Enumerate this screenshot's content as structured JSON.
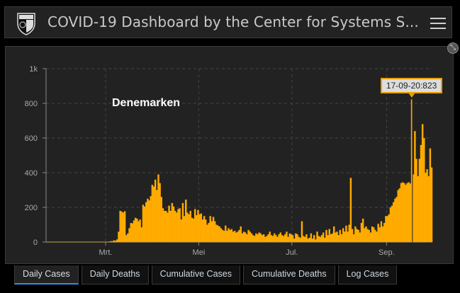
{
  "header": {
    "title": "COVID-19 Dashboard by the Center for Systems S...",
    "menu_icon": "hamburger-menu-icon",
    "logo": "university-shield-logo"
  },
  "chart_panel": {
    "expand_icon": "collapse-expand-icon",
    "country_label": "Denemarken",
    "tooltip": "17-09-20:823"
  },
  "tabs": [
    {
      "label": "Daily Cases",
      "active": true
    },
    {
      "label": "Daily Deaths",
      "active": false
    },
    {
      "label": "Cumulative Cases",
      "active": false
    },
    {
      "label": "Cumulative Deaths",
      "active": false
    },
    {
      "label": "Log Cases",
      "active": false
    }
  ],
  "colors": {
    "bar": "#ffab00",
    "accent": "#2f8fe6",
    "background": "#222222"
  },
  "chart_data": {
    "type": "bar",
    "title": "",
    "xlabel": "",
    "ylabel": "",
    "xlim": [
      "2020-01-22",
      "2020-10-01"
    ],
    "ylim": [
      0,
      1000
    ],
    "yticks": [
      {
        "value": 0,
        "label": "0"
      },
      {
        "value": 200,
        "label": "200"
      },
      {
        "value": 400,
        "label": "400"
      },
      {
        "value": 600,
        "label": "600"
      },
      {
        "value": 800,
        "label": "800"
      },
      {
        "value": 1000,
        "label": "1k"
      }
    ],
    "xticks": [
      {
        "date": "2020-03-01",
        "label": "Mrt."
      },
      {
        "date": "2020-05-01",
        "label": "Mei"
      },
      {
        "date": "2020-07-01",
        "label": "Jul."
      },
      {
        "date": "2020-09-01",
        "label": "Sep."
      }
    ],
    "grid": true,
    "highlight": {
      "date": "2020-09-17",
      "value": 823
    },
    "daily_values_by_month": {
      "2020-02": [
        0,
        0,
        0,
        0,
        0,
        0,
        0,
        0,
        0,
        0,
        0,
        0,
        0,
        0,
        0,
        0,
        0,
        0,
        0,
        0,
        0,
        0,
        0,
        0,
        0,
        0,
        0,
        1,
        0
      ],
      "2020-03": [
        2,
        0,
        3,
        5,
        5,
        10,
        8,
        15,
        60,
        180,
        175,
        170,
        178,
        40,
        50,
        80,
        110,
        108,
        125,
        140,
        135,
        120,
        130,
        85,
        215,
        205,
        230,
        250,
        240,
        265,
        330
      ],
      "2020-04": [
        320,
        360,
        300,
        390,
        340,
        260,
        195,
        180,
        180,
        170,
        210,
        180,
        225,
        205,
        180,
        170,
        190,
        195,
        130,
        225,
        150,
        245,
        170,
        160,
        180,
        140,
        135,
        190,
        155,
        185
      ],
      "2020-05": [
        160,
        165,
        130,
        150,
        130,
        100,
        110,
        150,
        120,
        145,
        120,
        100,
        95,
        90,
        80,
        70,
        65,
        95,
        65,
        80,
        70,
        75,
        60,
        65,
        55,
        60,
        70,
        90,
        50,
        60,
        55
      ],
      "2020-06": [
        45,
        70,
        60,
        50,
        40,
        35,
        50,
        45,
        55,
        50,
        40,
        45,
        30,
        35,
        45,
        60,
        40,
        35,
        50,
        40,
        30,
        45,
        55,
        40,
        35,
        45,
        60,
        30,
        50,
        45
      ],
      "2020-07": [
        40,
        20,
        50,
        45,
        30,
        25,
        120,
        35,
        30,
        45,
        20,
        25,
        50,
        20,
        40,
        15,
        60,
        35,
        30,
        40,
        55,
        25,
        70,
        40,
        75,
        45,
        50,
        90,
        55,
        60,
        40
      ],
      "2020-08": [
        70,
        45,
        80,
        60,
        95,
        60,
        100,
        370,
        75,
        45,
        90,
        75,
        70,
        55,
        110,
        135,
        80,
        90,
        75,
        70,
        55,
        90,
        85,
        70,
        60,
        105,
        85,
        120,
        90,
        110,
        150
      ],
      "2020-09": [
        150,
        160,
        200,
        210,
        230,
        250,
        260,
        300,
        310,
        340,
        345,
        340,
        330,
        340,
        345,
        338,
        823,
        390,
        640,
        480,
        380,
        480,
        560,
        680,
        600,
        400,
        420,
        380,
        540,
        430
      ]
    }
  }
}
